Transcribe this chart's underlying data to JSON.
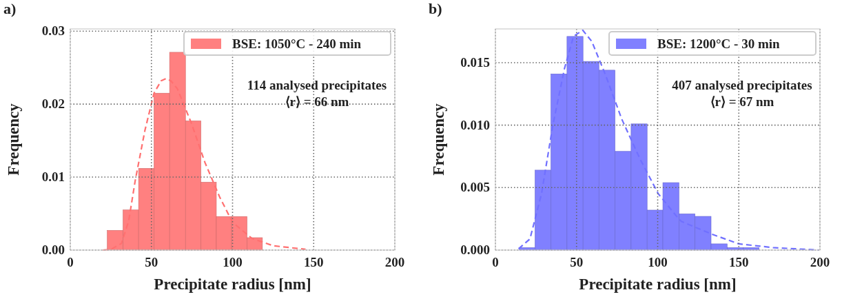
{
  "chart_data": [
    {
      "type": "histogram",
      "title": "a)",
      "xlabel": "Precipitate radius [nm]",
      "ylabel": "Frequency",
      "xlim": [
        0,
        200
      ],
      "xticks": [
        0,
        50,
        100,
        150,
        200
      ],
      "ylim": [
        0,
        0.0303
      ],
      "yticks": [
        {
          "value": 0,
          "label": "0.00"
        },
        {
          "value": 0.01,
          "label": "0.01"
        },
        {
          "value": 0.02,
          "label": "0.02"
        },
        {
          "value": 0.03,
          "label": "0.03"
        }
      ],
      "grid": true,
      "legend": "top right",
      "line_style": "dashed",
      "annotations": [
        "114 analysed precipitates",
        "⟨r⟩ = 66 nm"
      ],
      "bins": [
        22.8,
        32.5,
        42.1,
        51.6,
        61.2,
        71,
        80.5,
        90,
        99.4,
        108.9,
        118.4
      ],
      "series": [
        {
          "name": "BSE: 1050°C - 240 min",
          "color": "#ff8080",
          "values": [
            0.0027,
            0.0055,
            0.0112,
            0.0215,
            0.0271,
            0.0177,
            0.0093,
            0.0046,
            0.0046,
            0.0017
          ]
        },
        {
          "type": "line",
          "color": "#ff7070",
          "x": [
            20,
            25,
            31.5,
            36,
            40,
            46,
            51.6,
            56,
            59,
            62,
            66,
            74.6,
            83,
            92,
            100,
            112,
            125,
            145
          ],
          "values": [
            0,
            0.0001,
            0.0009,
            0.004,
            0.0095,
            0.0164,
            0.0215,
            0.0232,
            0.0235,
            0.0232,
            0.0221,
            0.0174,
            0.012,
            0.0073,
            0.0038,
            0.0016,
            0.0006,
            0.0001
          ]
        }
      ]
    },
    {
      "type": "histogram",
      "title": "b)",
      "xlabel": "Precipitate radius [nm]",
      "ylabel": "Frequency",
      "xlim": [
        0,
        200
      ],
      "xticks": [
        0,
        50,
        100,
        150,
        200
      ],
      "ylim": [
        0,
        0.0177
      ],
      "yticks": [
        {
          "value": 0,
          "label": "0.000"
        },
        {
          "value": 0.005,
          "label": "0.005"
        },
        {
          "value": 0.01,
          "label": "0.010"
        },
        {
          "value": 0.015,
          "label": "0.015"
        }
      ],
      "grid": true,
      "legend": "top right",
      "line_style": "dashed",
      "annotations": [
        "407 analysed precipitates",
        "⟨r⟩ = 67 nm"
      ],
      "bins": [
        14.5,
        24.4,
        34.2,
        44.1,
        54.0,
        63.8,
        73.7,
        83.6,
        93.5,
        103.2,
        113.1,
        123.0,
        132.9,
        142.8,
        152.6,
        162.5
      ],
      "series": [
        {
          "name": "BSE: 1200°C - 30 min",
          "color": "#8080ff",
          "values": [
            0.0002,
            0.0064,
            0.0141,
            0.0171,
            0.0151,
            0.0144,
            0.0079,
            0.0101,
            0.0032,
            0.0054,
            0.0029,
            0.0027,
            0.0005,
            0.0002,
            0.0002
          ]
        },
        {
          "type": "line",
          "color": "#7070ff",
          "x": [
            14.3,
            21.3,
            28.4,
            35.4,
            42.5,
            48.1,
            53.8,
            59.4,
            67.9,
            77.8,
            89.1,
            100.4,
            111.7,
            114.5,
            132.9,
            149.9,
            171,
            199.3
          ],
          "values": [
            0.0001,
            0.0009,
            0.0045,
            0.01,
            0.0145,
            0.0171,
            0.0176,
            0.0167,
            0.014,
            0.0105,
            0.0073,
            0.0045,
            0.0027,
            0.0023,
            0.0013,
            0.0005,
            0.0002,
            0
          ]
        }
      ]
    }
  ]
}
